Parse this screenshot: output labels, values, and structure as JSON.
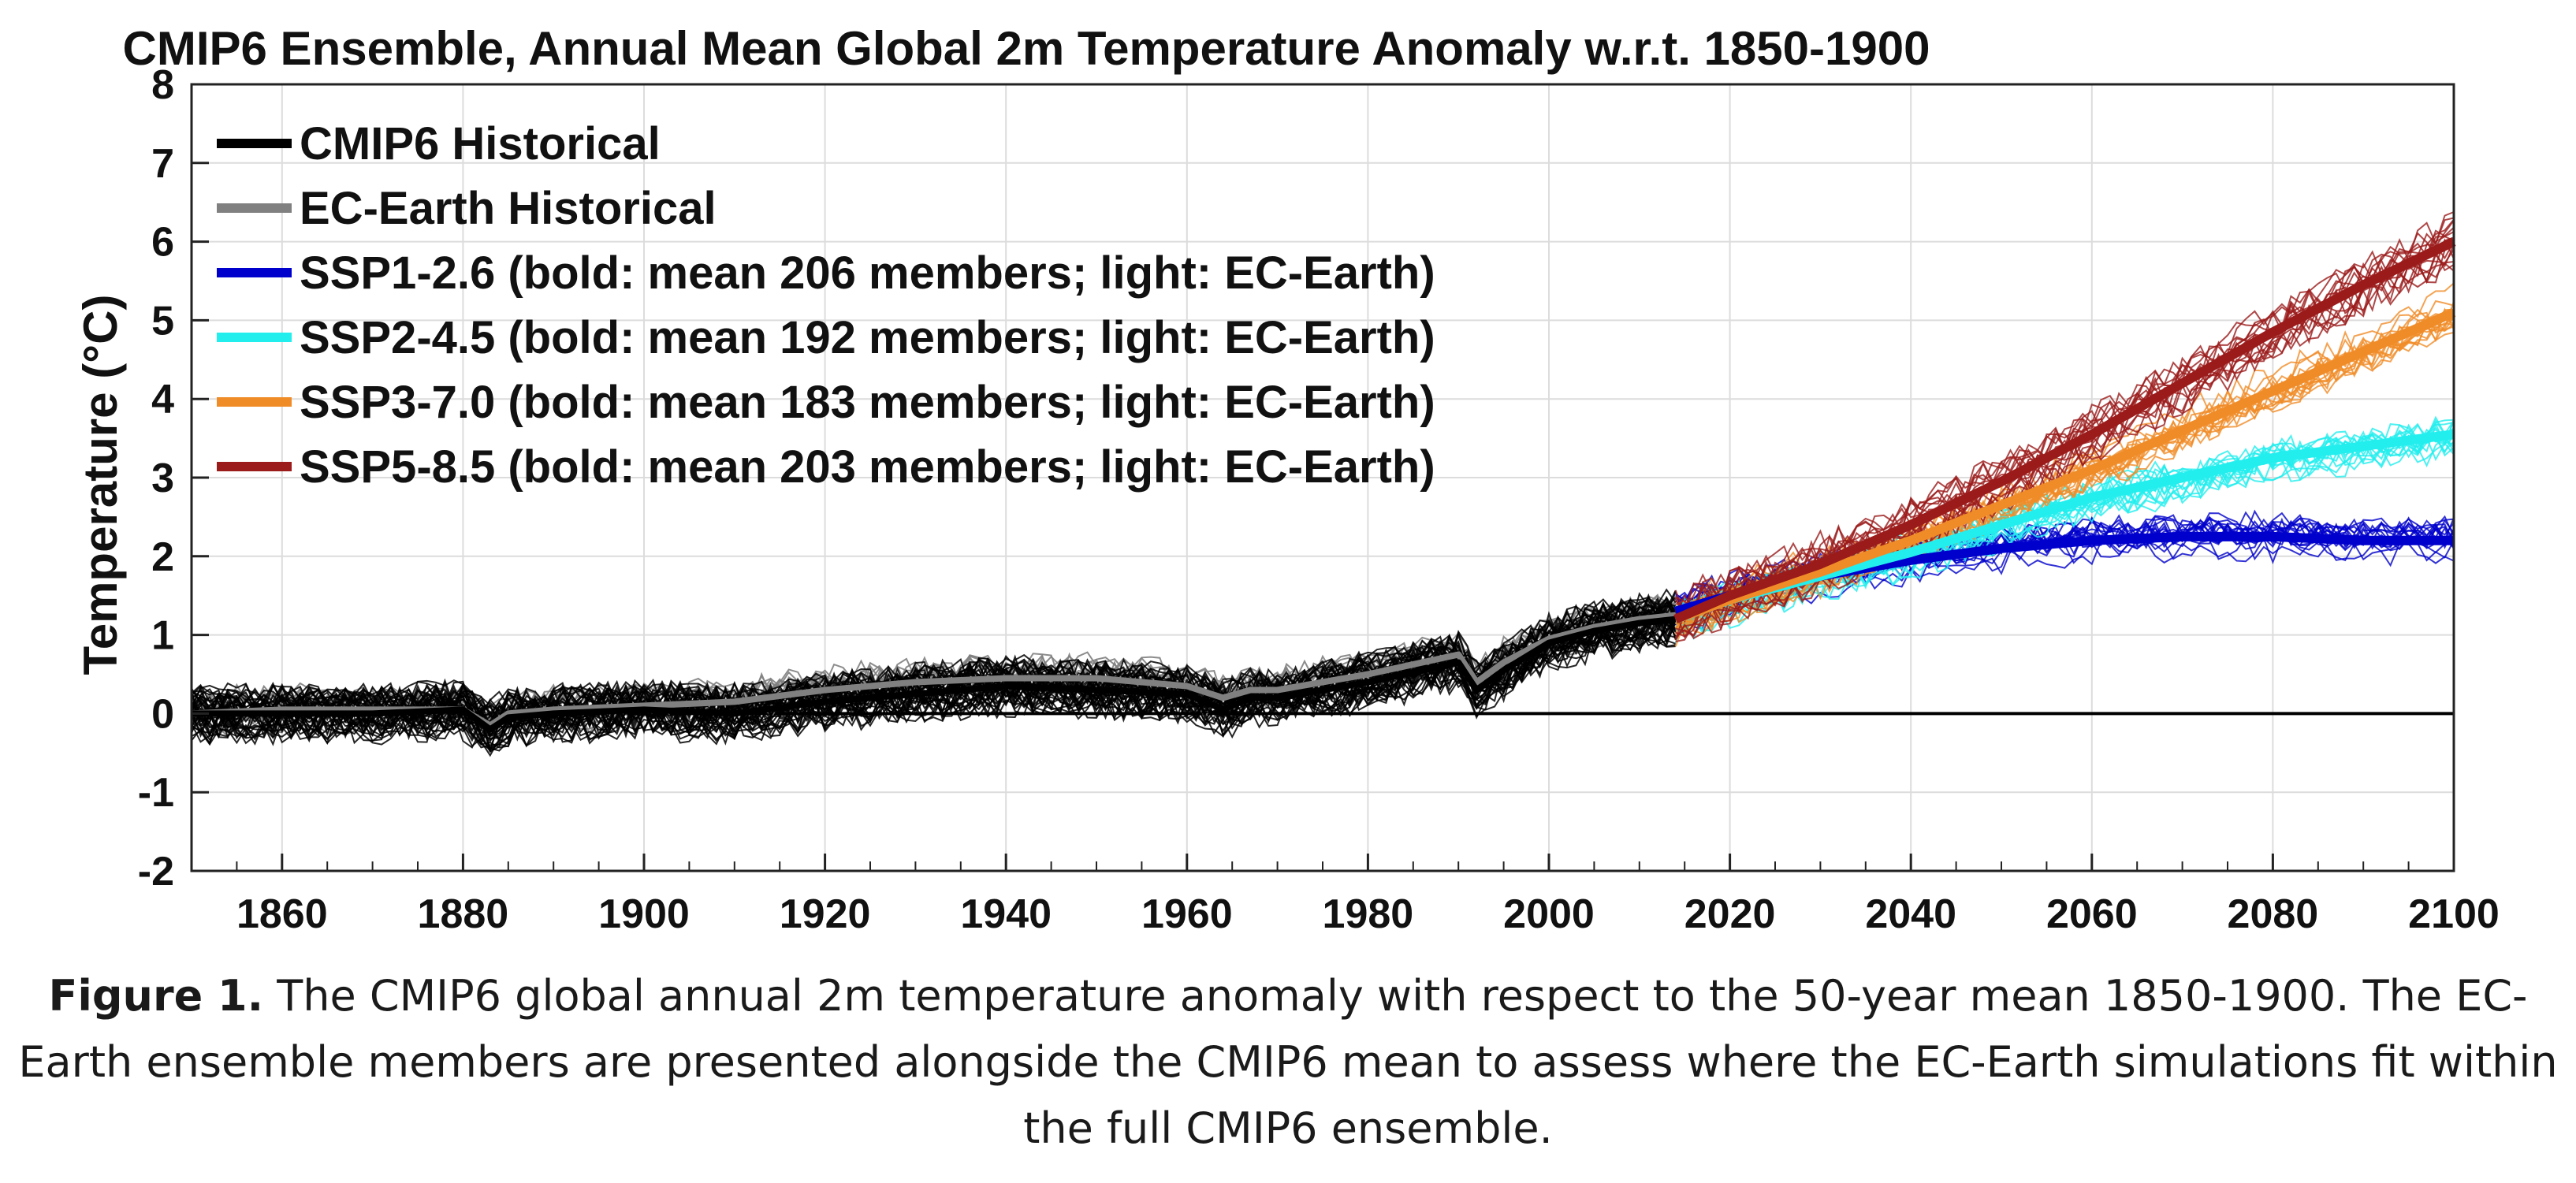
{
  "chart_data": {
    "type": "line",
    "title": "CMIP6 Ensemble, Annual Mean Global 2m Temperature Anomaly w.r.t. 1850-1900",
    "xlabel": "",
    "ylabel": "Temperature (°C)",
    "xlim": [
      1850,
      2100
    ],
    "ylim": [
      -2,
      8
    ],
    "xticks": [
      1860,
      1880,
      1900,
      1920,
      1940,
      1960,
      1980,
      2000,
      2020,
      2040,
      2060,
      2080,
      2100
    ],
    "yticks": [
      -2,
      -1,
      0,
      1,
      2,
      3,
      4,
      5,
      6,
      7,
      8
    ],
    "grid": true,
    "legend_position": "top-left",
    "reference_line": {
      "y": 0,
      "color": "#000000"
    },
    "series": [
      {
        "name": "CMIP6 Historical",
        "color": "#000000",
        "kind": "ensemble",
        "x": [
          1850,
          1860,
          1870,
          1880,
          1883,
          1885,
          1890,
          1900,
          1910,
          1920,
          1930,
          1940,
          1950,
          1960,
          1964,
          1967,
          1970,
          1980,
          1990,
          1992,
          1995,
          2000,
          2005,
          2010,
          2014
        ],
        "values": [
          0.0,
          0.0,
          0.0,
          0.05,
          -0.2,
          -0.05,
          0.0,
          0.05,
          0.0,
          0.15,
          0.25,
          0.35,
          0.3,
          0.25,
          0.05,
          0.2,
          0.2,
          0.4,
          0.65,
          0.3,
          0.55,
          0.9,
          1.05,
          1.15,
          1.2
        ],
        "spread": 0.45
      },
      {
        "name": "EC-Earth Historical",
        "color": "#808080",
        "kind": "ensemble",
        "x": [
          1850,
          1860,
          1870,
          1880,
          1883,
          1885,
          1890,
          1900,
          1910,
          1920,
          1930,
          1940,
          1950,
          1960,
          1964,
          1967,
          1970,
          1980,
          1990,
          1992,
          1995,
          2000,
          2005,
          2010,
          2014
        ],
        "values": [
          0.0,
          0.05,
          0.05,
          0.05,
          -0.15,
          0.0,
          0.05,
          0.1,
          0.15,
          0.3,
          0.4,
          0.45,
          0.45,
          0.35,
          0.2,
          0.3,
          0.3,
          0.5,
          0.75,
          0.4,
          0.65,
          0.95,
          1.1,
          1.2,
          1.25
        ],
        "spread": 0.4
      },
      {
        "name": "SSP1-2.6 (bold: mean 206 members; light: EC-Earth)",
        "color": "#0000cc",
        "kind": "scenario",
        "x": [
          2014,
          2020,
          2030,
          2040,
          2050,
          2060,
          2070,
          2080,
          2090,
          2100
        ],
        "values": [
          1.3,
          1.5,
          1.75,
          1.95,
          2.1,
          2.2,
          2.25,
          2.25,
          2.2,
          2.2
        ],
        "spread": 0.35
      },
      {
        "name": "SSP2-4.5 (bold: mean 192 members; light: EC-Earth)",
        "color": "#22eeee",
        "kind": "scenario",
        "x": [
          2014,
          2020,
          2030,
          2040,
          2050,
          2060,
          2070,
          2080,
          2090,
          2100
        ],
        "values": [
          1.2,
          1.45,
          1.75,
          2.05,
          2.4,
          2.75,
          3.0,
          3.25,
          3.4,
          3.55
        ],
        "spread": 0.4
      },
      {
        "name": "SSP3-7.0 (bold: mean 183 members; light: EC-Earth)",
        "color": "#f08c28",
        "kind": "scenario",
        "x": [
          2014,
          2020,
          2030,
          2040,
          2050,
          2060,
          2070,
          2080,
          2090,
          2100
        ],
        "values": [
          1.2,
          1.45,
          1.8,
          2.2,
          2.65,
          3.1,
          3.6,
          4.1,
          4.6,
          5.1
        ],
        "spread": 0.4
      },
      {
        "name": "SSP5-8.5 (bold: mean 203 members; light: EC-Earth)",
        "color": "#9b1a1a",
        "kind": "scenario",
        "x": [
          2014,
          2020,
          2030,
          2040,
          2050,
          2060,
          2070,
          2080,
          2090,
          2100
        ],
        "values": [
          1.2,
          1.5,
          1.9,
          2.4,
          2.95,
          3.55,
          4.2,
          4.85,
          5.45,
          6.0
        ],
        "spread": 0.45
      }
    ]
  },
  "caption": {
    "label": "Figure 1.",
    "text": "The CMIP6 global annual 2m temperature anomaly with respect to the 50-year mean 1850-1900. The EC-Earth ensemble members are presented alongside the CMIP6 mean to assess where the EC-Earth simulations fit within the full CMIP6 ensemble."
  }
}
